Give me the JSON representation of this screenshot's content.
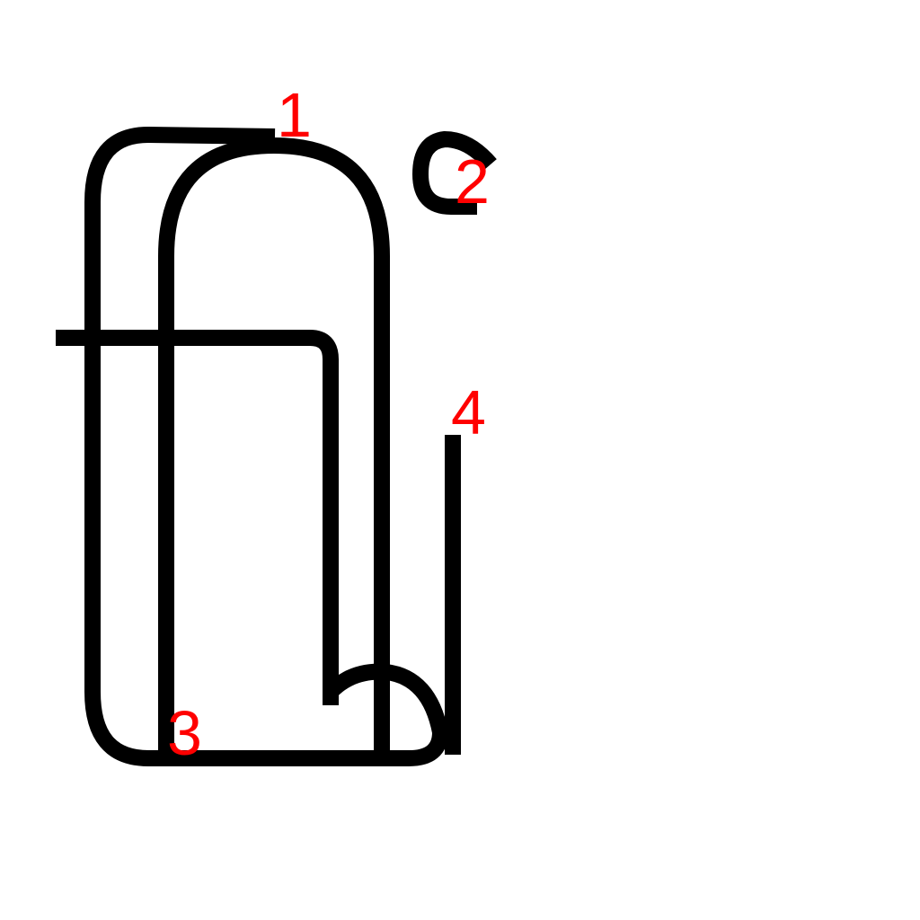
{
  "colors": {
    "stroke": "#000000",
    "marker": "#ff0000",
    "background": "#ffffff"
  },
  "markers": [
    {
      "label": "1"
    },
    {
      "label": "2"
    },
    {
      "label": "3"
    },
    {
      "label": "4"
    }
  ]
}
